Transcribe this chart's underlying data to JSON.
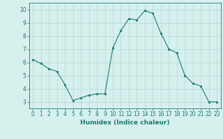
{
  "x": [
    0,
    1,
    2,
    3,
    4,
    5,
    6,
    7,
    8,
    9,
    10,
    11,
    12,
    13,
    14,
    15,
    16,
    17,
    18,
    19,
    20,
    21,
    22,
    23
  ],
  "y": [
    6.2,
    5.9,
    5.5,
    5.3,
    4.3,
    3.1,
    3.3,
    3.5,
    3.6,
    3.6,
    7.1,
    8.4,
    9.3,
    9.2,
    9.9,
    9.7,
    8.2,
    7.0,
    6.7,
    5.0,
    4.4,
    4.2,
    3.0,
    3.0
  ],
  "xlim": [
    -0.5,
    23.5
  ],
  "ylim": [
    2.5,
    10.5
  ],
  "yticks": [
    3,
    4,
    5,
    6,
    7,
    8,
    9,
    10
  ],
  "xticks": [
    0,
    1,
    2,
    3,
    4,
    5,
    6,
    7,
    8,
    9,
    10,
    11,
    12,
    13,
    14,
    15,
    16,
    17,
    18,
    19,
    20,
    21,
    22,
    23
  ],
  "xlabel": "Humidex (Indice chaleur)",
  "line_color": "#1a7a6e",
  "marker": "o",
  "marker_size": 1.8,
  "bg_color": "#d6f0ee",
  "grid_color": "#b0d8d4",
  "axis_color": "#1a7a6e",
  "label_color": "#1a7a6e",
  "tick_color": "#1a7a6e",
  "xlabel_fontsize": 6.5,
  "tick_fontsize": 5.5
}
